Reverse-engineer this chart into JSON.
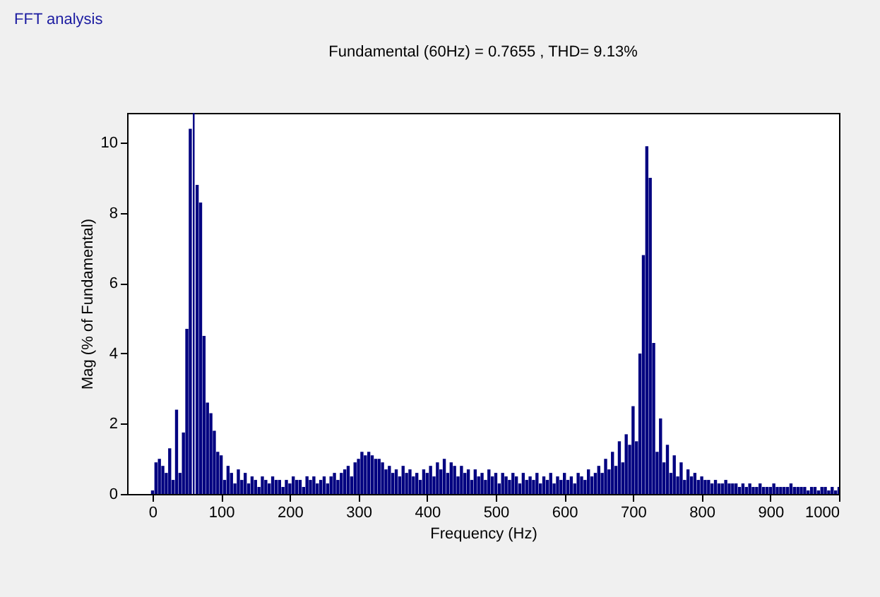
{
  "chart_data": {
    "type": "bar",
    "title": "Fundamental (60Hz) = 0.7655 , THD= 9.13%",
    "annotations": [
      "FFT analysis"
    ],
    "xlabel": "Frequency (Hz)",
    "ylabel": "Mag (% of Fundamental)",
    "x": [
      0,
      5,
      10,
      15,
      20,
      25,
      30,
      35,
      40,
      45,
      50,
      55,
      60,
      65,
      70,
      75,
      80,
      85,
      90,
      95,
      100,
      105,
      110,
      115,
      120,
      125,
      130,
      135,
      140,
      145,
      150,
      155,
      160,
      165,
      170,
      175,
      180,
      185,
      190,
      195,
      200,
      205,
      210,
      215,
      220,
      225,
      230,
      235,
      240,
      245,
      250,
      255,
      260,
      265,
      270,
      275,
      280,
      285,
      290,
      295,
      300,
      305,
      310,
      315,
      320,
      325,
      330,
      335,
      340,
      345,
      350,
      355,
      360,
      365,
      370,
      375,
      380,
      385,
      390,
      395,
      400,
      405,
      410,
      415,
      420,
      425,
      430,
      435,
      440,
      445,
      450,
      455,
      460,
      465,
      470,
      475,
      480,
      485,
      490,
      495,
      500,
      505,
      510,
      515,
      520,
      525,
      530,
      535,
      540,
      545,
      550,
      555,
      560,
      565,
      570,
      575,
      580,
      585,
      590,
      595,
      600,
      605,
      610,
      615,
      620,
      625,
      630,
      635,
      640,
      645,
      650,
      655,
      660,
      665,
      670,
      675,
      680,
      685,
      690,
      695,
      700,
      705,
      710,
      715,
      720,
      725,
      730,
      735,
      740,
      745,
      750,
      755,
      760,
      765,
      770,
      775,
      780,
      785,
      790,
      795,
      800,
      805,
      810,
      815,
      820,
      825,
      830,
      835,
      840,
      845,
      850,
      855,
      860,
      865,
      870,
      875,
      880,
      885,
      890,
      895,
      900,
      905,
      910,
      915,
      920,
      925,
      930,
      935,
      940,
      945,
      950,
      955,
      960,
      965,
      970,
      975,
      980,
      985,
      990,
      995,
      1000
    ],
    "series": [
      {
        "color": "#000080",
        "values": [
          0.1,
          0.9,
          1.0,
          0.8,
          0.6,
          1.3,
          0.4,
          2.4,
          0.6,
          1.75,
          4.7,
          10.4,
          null,
          8.8,
          8.3,
          4.5,
          2.6,
          2.3,
          1.8,
          1.2,
          1.1,
          0.4,
          0.8,
          0.6,
          0.3,
          0.7,
          0.4,
          0.6,
          0.3,
          0.5,
          0.4,
          0.2,
          0.5,
          0.4,
          0.3,
          0.5,
          0.4,
          0.4,
          0.2,
          0.4,
          0.3,
          0.5,
          0.4,
          0.4,
          0.2,
          0.5,
          0.4,
          0.5,
          0.3,
          0.4,
          0.5,
          0.3,
          0.5,
          0.6,
          0.4,
          0.6,
          0.7,
          0.8,
          0.5,
          0.9,
          1.0,
          1.2,
          1.1,
          1.2,
          1.1,
          1.0,
          1.0,
          0.9,
          0.7,
          0.8,
          0.6,
          0.7,
          0.5,
          0.8,
          0.6,
          0.7,
          0.5,
          0.6,
          0.4,
          0.7,
          0.6,
          0.8,
          0.5,
          0.9,
          0.7,
          1.0,
          0.6,
          0.9,
          0.8,
          0.5,
          0.8,
          0.6,
          0.7,
          0.4,
          0.7,
          0.5,
          0.6,
          0.4,
          0.7,
          0.5,
          0.6,
          0.3,
          0.6,
          0.5,
          0.4,
          0.6,
          0.5,
          0.3,
          0.6,
          0.4,
          0.5,
          0.4,
          0.6,
          0.3,
          0.5,
          0.4,
          0.6,
          0.3,
          0.5,
          0.4,
          0.6,
          0.4,
          0.5,
          0.3,
          0.6,
          0.5,
          0.4,
          0.7,
          0.5,
          0.6,
          0.8,
          0.6,
          1.0,
          0.7,
          1.2,
          0.8,
          1.5,
          0.9,
          1.7,
          1.4,
          2.5,
          1.5,
          4.0,
          6.8,
          9.9,
          9.0,
          4.3,
          1.2,
          2.15,
          0.9,
          1.4,
          0.6,
          1.1,
          0.5,
          0.9,
          0.4,
          0.7,
          0.5,
          0.6,
          0.4,
          0.5,
          0.4,
          0.4,
          0.3,
          0.4,
          0.3,
          0.3,
          0.4,
          0.3,
          0.3,
          0.3,
          0.2,
          0.3,
          0.2,
          0.3,
          0.2,
          0.2,
          0.3,
          0.2,
          0.2,
          0.2,
          0.3,
          0.2,
          0.2,
          0.2,
          0.2,
          0.3,
          0.2,
          0.2,
          0.2,
          0.2,
          0.1,
          0.2,
          0.2,
          0.1,
          0.2,
          0.2,
          0.1,
          0.2,
          0.1,
          0.2
        ]
      }
    ],
    "ref_lines": [
      {
        "axis": "x",
        "value": 60,
        "label": null,
        "color": "#000080"
      }
    ],
    "xlim": [
      -37,
      1000
    ],
    "xticks": [
      0,
      100,
      200,
      300,
      400,
      500,
      600,
      700,
      800,
      900,
      1000
    ],
    "ylim": [
      0,
      10.85
    ],
    "yticks": [
      0,
      2,
      4,
      6,
      8,
      10
    ],
    "grid": false
  }
}
